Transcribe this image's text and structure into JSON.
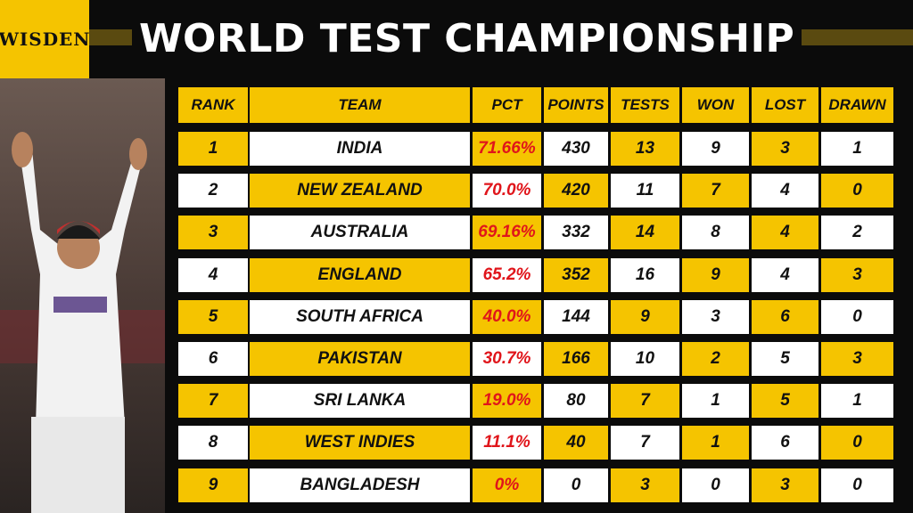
{
  "header": {
    "brand": "WISDEN",
    "title": "WORLD TEST CHAMPIONSHIP"
  },
  "table": {
    "columns": [
      "RANK",
      "TEAM",
      "PCT",
      "POINTS",
      "TESTS",
      "WON",
      "LOST",
      "DRAWN"
    ],
    "rows": [
      [
        "1",
        "INDIA",
        "71.66%",
        "430",
        "13",
        "9",
        "3",
        "1"
      ],
      [
        "2",
        "NEW ZEALAND",
        "70.0%",
        "420",
        "11",
        "7",
        "4",
        "0"
      ],
      [
        "3",
        "AUSTRALIA",
        "69.16%",
        "332",
        "14",
        "8",
        "4",
        "2"
      ],
      [
        "4",
        "ENGLAND",
        "65.2%",
        "352",
        "16",
        "9",
        "4",
        "3"
      ],
      [
        "5",
        "SOUTH AFRICA",
        "40.0%",
        "144",
        "9",
        "3",
        "6",
        "0"
      ],
      [
        "6",
        "PAKISTAN",
        "30.7%",
        "166",
        "10",
        "2",
        "5",
        "3"
      ],
      [
        "7",
        "SRI LANKA",
        "19.0%",
        "80",
        "7",
        "1",
        "5",
        "1"
      ],
      [
        "8",
        "WEST INDIES",
        "11.1%",
        "40",
        "7",
        "1",
        "6",
        "0"
      ],
      [
        "9",
        "BANGLADESH",
        "0%",
        "0",
        "3",
        "0",
        "3",
        "0"
      ]
    ]
  }
}
